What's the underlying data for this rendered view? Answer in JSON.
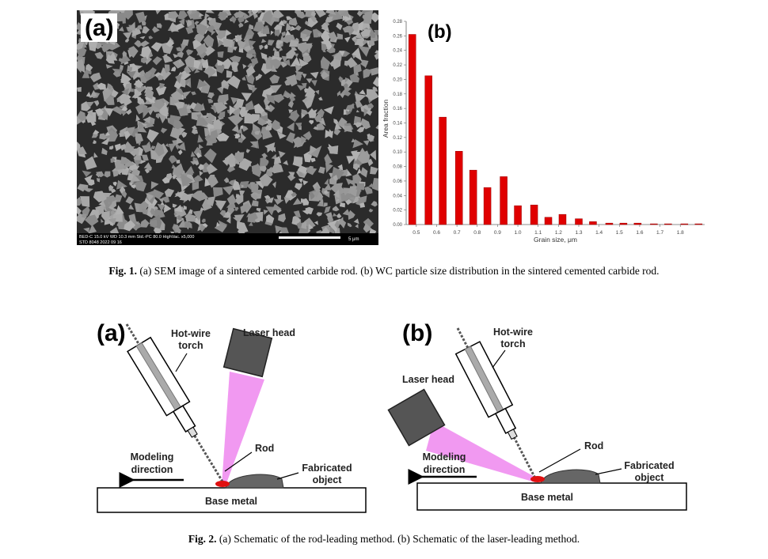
{
  "figure1": {
    "panel_a": {
      "label": "(a)",
      "info_line1": "BED-C  15.0 kV  WD 10.3 mm  Std.-PC 80.0  HighVac.  x5,000",
      "info_line2": "STD  8048  2022 09 16",
      "scale_bar": "5 μm"
    },
    "caption_label": "Fig. 1.",
    "caption": "(a) SEM image of a sintered cemented carbide rod. (b) WC particle size distribution in the sintered cemented carbide rod."
  },
  "chart_data": {
    "type": "bar",
    "annotation": "(b)",
    "x_label": "Grain size, μm",
    "y_label": "Area fraction",
    "color": "#e00000",
    "x": [
      0.48,
      0.56,
      0.63,
      0.71,
      0.78,
      0.85,
      0.93,
      1.0,
      1.08,
      1.15,
      1.22,
      1.3,
      1.37,
      1.45,
      1.52,
      1.59,
      1.67,
      1.74,
      1.82,
      1.89
    ],
    "values": [
      0.262,
      0.205,
      0.148,
      0.101,
      0.075,
      0.051,
      0.066,
      0.026,
      0.027,
      0.01,
      0.014,
      0.008,
      0.004,
      0.002,
      0.002,
      0.002,
      0.001,
      0.001,
      0.001,
      0.001
    ],
    "xlim": [
      0.45,
      1.92
    ],
    "xticks": [
      0.5,
      0.6,
      0.7,
      0.8,
      0.9,
      {
        "value": 1.0,
        "label": "1.0"
      },
      1.1,
      1.2,
      1.3,
      1.4,
      1.5,
      1.6,
      1.7,
      1.8
    ],
    "ylim": [
      0,
      0.28
    ],
    "yticks": [
      {
        "value": 0,
        "label": "0.00"
      },
      {
        "value": 0.02,
        "label": "0.02"
      },
      {
        "value": 0.04,
        "label": "0.04"
      },
      {
        "value": 0.06,
        "label": "0.06"
      },
      {
        "value": 0.08,
        "label": "0.08"
      },
      {
        "value": 0.1,
        "label": "0.10"
      },
      {
        "value": 0.12,
        "label": "0.12"
      },
      {
        "value": 0.14,
        "label": "0.14"
      },
      {
        "value": 0.16,
        "label": "0.16"
      },
      {
        "value": 0.18,
        "label": "0.18"
      },
      {
        "value": 0.2,
        "label": "0.20"
      },
      {
        "value": 0.22,
        "label": "0.22"
      },
      {
        "value": 0.24,
        "label": "0.24"
      },
      {
        "value": 0.26,
        "label": "0.26"
      },
      {
        "value": 0.28,
        "label": "0.28"
      }
    ]
  },
  "figure2": {
    "panel_a": {
      "label": "(a)",
      "torch": [
        "Hot-wire",
        "torch"
      ],
      "laser": "Laser head",
      "rod": "Rod",
      "direction": [
        "Modeling",
        "direction"
      ],
      "object": [
        "Fabricated",
        "object"
      ],
      "base": "Base metal"
    },
    "panel_b": {
      "label": "(b)",
      "torch": [
        "Hot-wire",
        "torch"
      ],
      "laser": "Laser head",
      "rod": "Rod",
      "direction": [
        "Modeling",
        "direction"
      ],
      "object": [
        "Fabricated",
        "object"
      ],
      "base": "Base metal"
    },
    "caption_label": "Fig. 2.",
    "caption": "(a) Schematic of the rod-leading method. (b) Schematic of the laser-leading method."
  }
}
